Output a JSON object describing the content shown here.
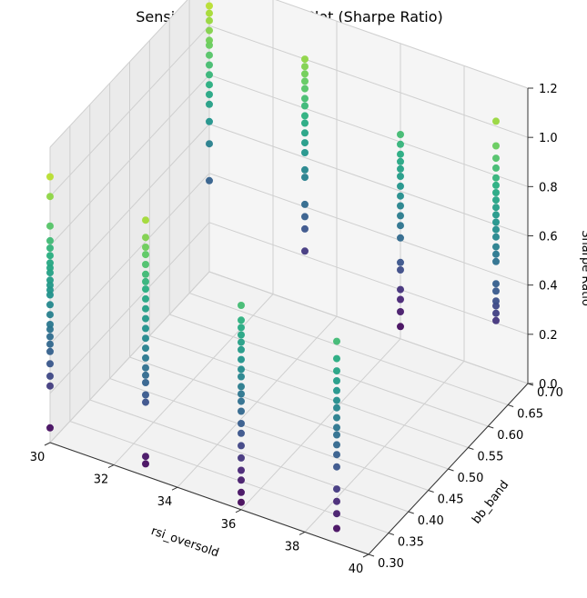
{
  "chart_data": {
    "type": "scatter",
    "title": "Sensitivity Analysis 3D Plot (Sharpe Ratio)",
    "xlabel": "rsi_oversold",
    "ylabel": "bb_band",
    "zlabel": "Sharpe Ratio",
    "xlim": [
      30,
      40
    ],
    "ylim": [
      0.3,
      0.7
    ],
    "zlim": [
      0,
      1.2
    ],
    "x_ticks": [
      "30",
      "32",
      "34",
      "36",
      "38",
      "40"
    ],
    "y_ticks": [
      "0.30",
      "0.35",
      "0.40",
      "0.45",
      "0.50",
      "0.55",
      "0.60",
      "0.65",
      "0.70"
    ],
    "z_ticks": [
      "0.0",
      "0.2",
      "0.4",
      "0.6",
      "0.8",
      "1.0",
      "1.2"
    ],
    "colormap": "viridis",
    "grid": true,
    "columns": [
      {
        "x": 30,
        "y": 0.3,
        "z": [
          0.06,
          0.23,
          0.27,
          0.32,
          0.37,
          0.4,
          0.43,
          0.46,
          0.48,
          0.52,
          0.56,
          0.6,
          0.62,
          0.64,
          0.66,
          0.69,
          0.71,
          0.73,
          0.76,
          0.79,
          0.82,
          0.88,
          1.0,
          1.08
        ]
      },
      {
        "x": 30,
        "y": 0.7,
        "z": [
          0.37,
          0.52,
          0.61,
          0.68,
          0.72,
          0.76,
          0.8,
          0.84,
          0.88,
          0.92,
          0.94,
          0.98,
          1.02,
          1.05,
          1.08,
          1.12,
          1.15,
          1.19
        ]
      },
      {
        "x": 33,
        "y": 0.3,
        "z": [
          0.05,
          0.08,
          0.3,
          0.33,
          0.38,
          0.41,
          0.44,
          0.48,
          0.52,
          0.56,
          0.6,
          0.64,
          0.68,
          0.72,
          0.76,
          0.79,
          0.82,
          0.86,
          0.9,
          0.93,
          0.97,
          1.04
        ]
      },
      {
        "x": 33,
        "y": 0.7,
        "z": [
          0.22,
          0.31,
          0.36,
          0.41,
          0.52,
          0.55,
          0.62,
          0.66,
          0.7,
          0.74,
          0.77,
          0.81,
          0.84,
          0.88,
          0.91,
          0.94,
          0.97,
          1.0
        ]
      },
      {
        "x": 36,
        "y": 0.3,
        "z": [
          0.03,
          0.07,
          0.12,
          0.16,
          0.21,
          0.26,
          0.31,
          0.35,
          0.4,
          0.44,
          0.47,
          0.5,
          0.54,
          0.57,
          0.61,
          0.65,
          0.68,
          0.71,
          0.74,
          0.77,
          0.83
        ]
      },
      {
        "x": 36,
        "y": 0.7,
        "z": [
          0.05,
          0.11,
          0.16,
          0.2,
          0.28,
          0.31,
          0.41,
          0.46,
          0.5,
          0.54,
          0.58,
          0.62,
          0.66,
          0.69,
          0.72,
          0.75,
          0.79,
          0.83
        ]
      },
      {
        "x": 39,
        "y": 0.3,
        "z": [
          0.06,
          0.12,
          0.17,
          0.22,
          0.31,
          0.36,
          0.4,
          0.44,
          0.47,
          0.51,
          0.55,
          0.58,
          0.62,
          0.66,
          0.7,
          0.75,
          0.82
        ]
      },
      {
        "x": 39,
        "y": 0.7,
        "z": [
          0.21,
          0.24,
          0.27,
          0.29,
          0.33,
          0.36,
          0.45,
          0.48,
          0.51,
          0.55,
          0.58,
          0.61,
          0.64,
          0.67,
          0.7,
          0.73,
          0.76,
          0.79,
          0.83,
          0.87,
          0.92,
          1.02
        ]
      }
    ]
  }
}
